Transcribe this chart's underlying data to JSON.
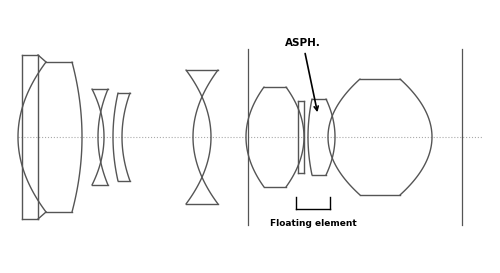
{
  "figsize": [
    5.0,
    2.73
  ],
  "dpi": 100,
  "bg_color": "#ffffff",
  "line_color": "#555555",
  "line_width": 1.0,
  "axis_color": "#aaaaaa",
  "axis_lw": 0.8,
  "annot_color": "#000000",
  "xlim": [
    0,
    500
  ],
  "ylim": [
    0,
    273
  ]
}
